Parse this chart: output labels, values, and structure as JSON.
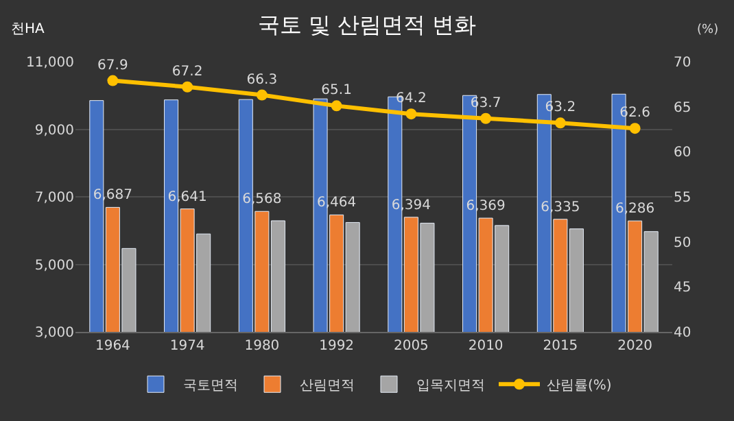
{
  "chart_data": {
    "type": "bar",
    "title": "국토 및 산림면적 변화",
    "ylabel": "천HA",
    "y2label": "(%)",
    "categories": [
      "1964",
      "1974",
      "1980",
      "1992",
      "2005",
      "2010",
      "2015",
      "2020"
    ],
    "series": [
      {
        "name": "국토면적",
        "color": "#4472c4",
        "values": [
          9850,
          9870,
          9880,
          9900,
          9960,
          10000,
          10030,
          10040
        ]
      },
      {
        "name": "산림면적",
        "color": "#ed7d31",
        "values": [
          6687,
          6641,
          6568,
          6464,
          6394,
          6369,
          6335,
          6286
        ],
        "value_labels": [
          "6,687",
          "6,641",
          "6,568",
          "6,464",
          "6,394",
          "6,369",
          "6,335",
          "6,286"
        ]
      },
      {
        "name": "입목지면적",
        "color": "#a5a5a5",
        "values": [
          5470,
          5900,
          6290,
          6240,
          6220,
          6150,
          6050,
          5970
        ]
      },
      {
        "name": "산림률(%)",
        "type": "line",
        "axis": "y2",
        "color": "#ffc000",
        "marker": "circle",
        "values": [
          67.9,
          67.2,
          66.3,
          65.1,
          64.2,
          63.7,
          63.2,
          62.6
        ],
        "value_labels": [
          "67.9",
          "67.2",
          "66.3",
          "65.1",
          "64.2",
          "63.7",
          "63.2",
          "62.6"
        ]
      }
    ],
    "ylim": [
      3000,
      11000
    ],
    "yticks": [
      {
        "value": 3000,
        "label": "3,000"
      },
      {
        "value": 5000,
        "label": "5,000"
      },
      {
        "value": 7000,
        "label": "7,000"
      },
      {
        "value": 9000,
        "label": "9,000"
      },
      {
        "value": 11000,
        "label": "11,000"
      }
    ],
    "y2lim": [
      40,
      70
    ],
    "y2ticks": [
      40,
      45,
      50,
      55,
      60,
      65,
      70
    ],
    "grid": "y",
    "legend": "bottom"
  }
}
